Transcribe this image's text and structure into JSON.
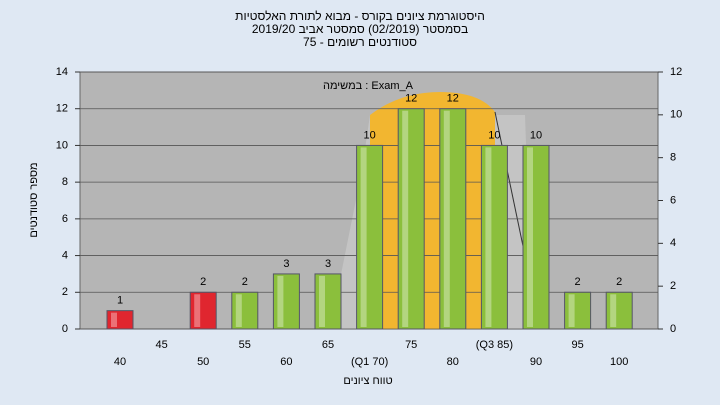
{
  "chart_data": {
    "type": "bar",
    "title": [
      "היסטוגרמת ציונים בקורס - מבוא לתורת האלסטיות",
      "בסמסטר  (02/2019)  סמסטר אביב 2019/20",
      "סטודנטים רשומים - 75"
    ],
    "annotation": "במשימה : Exam_A",
    "x_label": "טווח ציונים",
    "y_label": "מספר סטודנטים",
    "categories": [
      "40",
      "45",
      "50",
      "55",
      "60",
      "65",
      "(Q1 70)",
      "75",
      "80",
      "(Q3 85)",
      "90",
      "95",
      "100"
    ],
    "values": [
      1,
      null,
      2,
      2,
      3,
      3,
      10,
      12,
      12,
      10,
      10,
      2,
      2
    ],
    "colors": [
      "#e0262f",
      "#8bbf3c",
      "#e0262f",
      "#8bbf3c",
      "#8bbf3c",
      "#8bbf3c",
      "#8bbf3c",
      "#8bbf3c",
      "#8bbf3c",
      "#8bbf3c",
      "#8bbf3c",
      "#8bbf3c",
      "#8bbf3c"
    ],
    "ylim": [
      0,
      14
    ],
    "yticks": [
      0,
      2,
      4,
      6,
      8,
      10,
      12,
      14
    ],
    "y2lim": [
      0,
      12
    ],
    "y2ticks": [
      0,
      2,
      4,
      6,
      8,
      10,
      12
    ],
    "grid": true
  }
}
